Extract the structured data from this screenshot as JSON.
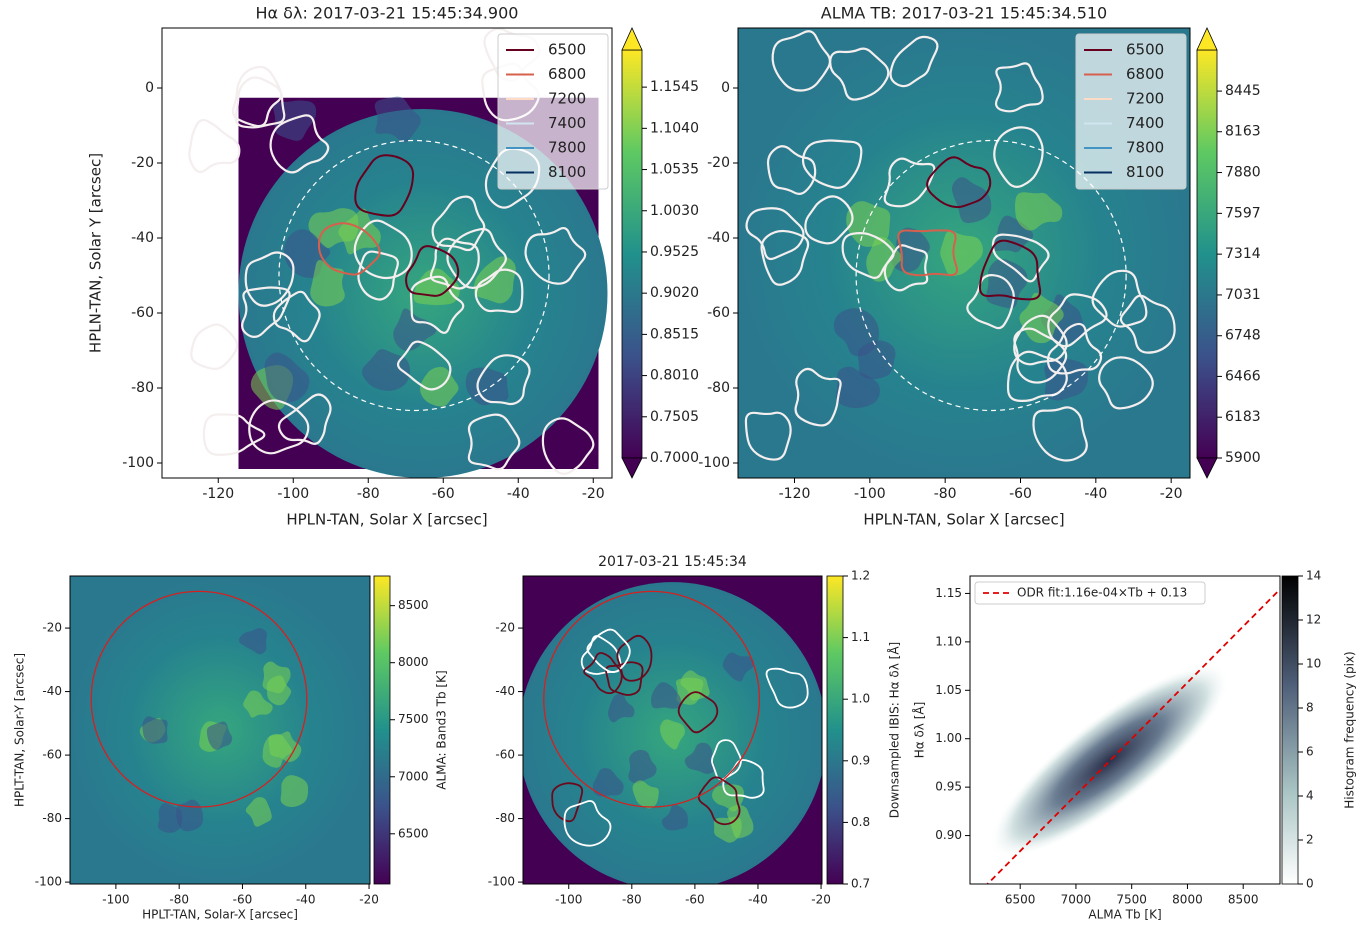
{
  "chart_data": [
    {
      "type": "image",
      "title": "Hα δλ: 2017-03-21 15:45:34.900",
      "xlabel": "HPLN-TAN, Solar X [arcsec]",
      "ylabel": "HPLN-TAN, Solar Y [arcsec]",
      "xlim": [
        -135,
        -15
      ],
      "ylim": [
        -104,
        16
      ],
      "xticks": [
        -120,
        -100,
        -80,
        -60,
        -40,
        -20
      ],
      "yticks": [
        0,
        -20,
        -40,
        -60,
        -80,
        -100
      ],
      "colorbar": {
        "cmap": "viridis",
        "extend": "both",
        "clim": [
          0.7,
          1.2
        ],
        "ticks": [
          {
            "value": 0.7,
            "label": "0.7000"
          },
          0.7505,
          {
            "value": 0.801,
            "label": "0.8010"
          },
          0.8515,
          {
            "value": 0.902,
            "label": "0.9020"
          },
          0.9525,
          {
            "value": 1.003,
            "label": "1.0030"
          },
          1.0535,
          {
            "value": 1.104,
            "label": "1.1040"
          },
          1.1545
        ]
      },
      "contours": {
        "levels": [
          6500,
          6800,
          7200,
          7400,
          7800,
          8100
        ],
        "colors": [
          "#67001f",
          "#d6604d",
          "#fddbc7",
          "#d1e5f0",
          "#4393c3",
          "#053061"
        ]
      },
      "legend": "upper right"
    },
    {
      "type": "image",
      "title": "ALMA TB: 2017-03-21 15:45:34.510",
      "xlabel": "HPLN-TAN, Solar X [arcsec]",
      "xlim": [
        -135,
        -15
      ],
      "ylim": [
        -104,
        16
      ],
      "xticks": [
        -120,
        -100,
        -80,
        -60,
        -40,
        -20
      ],
      "yticks": [
        0,
        -20,
        -40,
        -60,
        -80,
        -100
      ],
      "colorbar": {
        "cmap": "viridis",
        "extend": "both",
        "clim": [
          5900,
          8730
        ],
        "ticks": [
          5900,
          6183,
          6466,
          6748,
          7031,
          7314,
          7597,
          7880,
          8163,
          8445
        ]
      },
      "contours": {
        "levels": [
          6500,
          6800,
          7200,
          7400,
          7800,
          8100
        ],
        "colors": [
          "#67001f",
          "#d6604d",
          "#fddbc7",
          "#d1e5f0",
          "#4393c3",
          "#053061"
        ]
      },
      "legend": "upper right"
    },
    {
      "type": "image",
      "xlabel": "HPLT-TAN, Solar-X [arcsec]",
      "ylabel": "HPLT-TAN, Solar-Y [arcsec]",
      "xlim": [
        -114.5,
        -19.7
      ],
      "ylim": [
        -100.6,
        -3.6
      ],
      "xticks": [
        -100,
        -80,
        -60,
        -40,
        -20
      ],
      "yticks": [
        -20,
        -40,
        -60,
        -80,
        -100
      ],
      "colorbar": {
        "cmap": "viridis",
        "label": "ALMA: Band3 Tb [K]",
        "clim": [
          6060,
          8760
        ],
        "ticks": [
          6500,
          7000,
          7500,
          8000,
          8500
        ]
      }
    },
    {
      "type": "image",
      "title": "2017-03-21 15:45:34",
      "xlim": [
        -114.5,
        -19.7
      ],
      "ylim": [
        -100.6,
        -3.6
      ],
      "xticks": [
        -100,
        -80,
        -60,
        -40,
        -20
      ],
      "yticks": [
        -20,
        -40,
        -60,
        -80,
        -100
      ],
      "colorbar": {
        "cmap": "viridis",
        "label": "Downsampled IBIS: Hα δλ [Å]",
        "clim": [
          0.7,
          1.2
        ],
        "ticks": [
          0.7,
          0.8,
          0.9,
          {
            "value": 1,
            "label": "1.0"
          },
          1.1,
          1.2
        ]
      }
    },
    {
      "type": "histogram2d",
      "xlabel": "ALMA Tb [K]",
      "ylabel": "Hα δλ [Å]",
      "xlim": [
        6050,
        8830
      ],
      "ylim": [
        0.85,
        1.168
      ],
      "xticks": [
        6500,
        7000,
        7500,
        8000,
        8500
      ],
      "yticks": [
        {
          "value": 0.9,
          "label": "0.90"
        },
        0.95,
        {
          "value": 1,
          "label": "1.00"
        },
        1.05,
        {
          "value": 1.1,
          "label": "1.10"
        },
        1.15
      ],
      "colorbar": {
        "cmap": "bone_r",
        "label": "Histogram frequency (pix)",
        "clim": [
          0,
          14
        ],
        "ticks": [
          0,
          2,
          4,
          6,
          8,
          10,
          12,
          14
        ]
      },
      "fit": {
        "label": "ODR fit:1.16e-04×Tb +  0.13",
        "slope": 0.000116,
        "intercept": 0.13,
        "color": "#e00000"
      },
      "legend": "upper left"
    }
  ]
}
